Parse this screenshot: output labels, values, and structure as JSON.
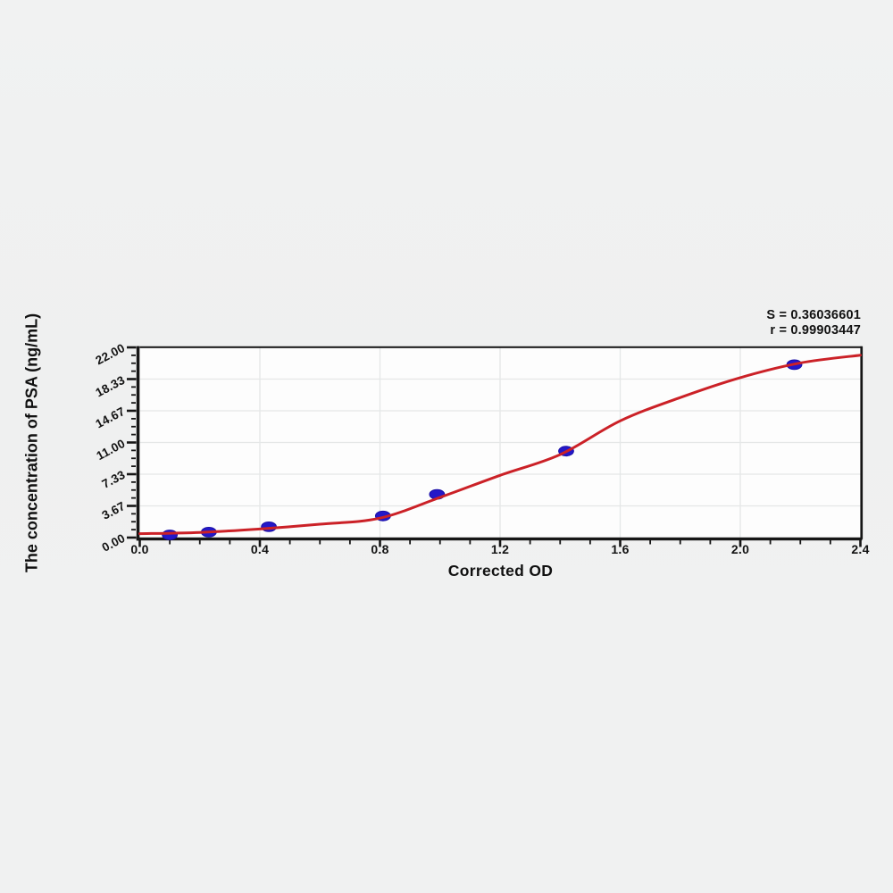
{
  "figure": {
    "stats_line1": "S = 0.36036601",
    "stats_line2": "r = 0.99903447"
  },
  "chart_data": {
    "type": "scatter",
    "title": "",
    "xlabel": "Corrected OD",
    "ylabel": "The concentration of PSA (ng/mL)",
    "xlim": [
      0,
      2.4
    ],
    "ylim": [
      0,
      22
    ],
    "x_ticks": [
      0,
      0.4,
      0.8,
      1.2,
      1.6,
      2.0,
      2.4
    ],
    "x_tick_labels": [
      "0.0",
      "0.4",
      "0.8",
      "1.2",
      "1.6",
      "2.0",
      "2.4"
    ],
    "x_minor_step": 0.1,
    "y_ticks": [
      0,
      3.6667,
      7.3333,
      11,
      14.6667,
      18.3333,
      22
    ],
    "y_tick_labels": [
      "0.00",
      "3.67",
      "7.33",
      "11.00",
      "14.67",
      "18.33",
      "22.00"
    ],
    "y_minor_divisions": 4,
    "grid": true,
    "legend_position": "none",
    "annotations": [
      "S = 0.36036601",
      "r = 0.99903447"
    ],
    "series": [
      {
        "name": "standard-points",
        "type": "scatter",
        "marker": "ellipse",
        "color": "#2418c9",
        "edge_color": "#1a0fa6",
        "points": [
          [
            0.1,
            0.31
          ],
          [
            0.23,
            0.63
          ],
          [
            0.43,
            1.25
          ],
          [
            0.81,
            2.5
          ],
          [
            0.99,
            5.0
          ],
          [
            1.42,
            10.0
          ],
          [
            2.18,
            20.0
          ]
        ]
      },
      {
        "name": "4pl-fit-curve",
        "type": "line",
        "color": "#cb2127",
        "points": [
          [
            0,
            0.45
          ],
          [
            0.2,
            0.6
          ],
          [
            0.4,
            1.0
          ],
          [
            0.6,
            1.55
          ],
          [
            0.8,
            2.25
          ],
          [
            1.0,
            4.65
          ],
          [
            1.2,
            7.2
          ],
          [
            1.4,
            9.6
          ],
          [
            1.6,
            13.5
          ],
          [
            1.8,
            16.2
          ],
          [
            2.0,
            18.5
          ],
          [
            2.2,
            20.2
          ],
          [
            2.4,
            21.1
          ]
        ]
      }
    ],
    "colors": {
      "page_bg": "#f0f1f1",
      "plot_bg": "#fdfdfd",
      "grid": "#e5e7e7",
      "axis": "#161616",
      "text": "#131313"
    }
  }
}
